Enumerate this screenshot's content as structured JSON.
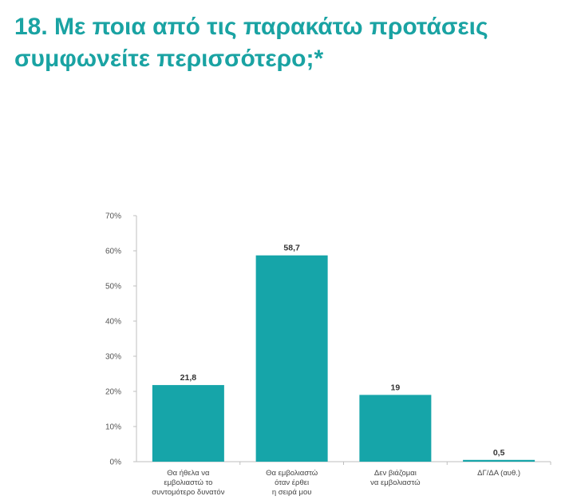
{
  "title": {
    "line1": "18. Με ποια από τις παρακάτω προτάσεις",
    "line2": "συμφωνείτε περισσότερο;*"
  },
  "colors": {
    "title": "#1aa3a3",
    "bar": "#16a5a9",
    "axis": "#bfbfbf"
  },
  "chart_data": {
    "type": "bar",
    "title": "",
    "xlabel": "",
    "ylabel": "",
    "ylim": [
      0,
      70
    ],
    "yticks": [
      "0%",
      "10%",
      "20%",
      "30%",
      "40%",
      "50%",
      "60%",
      "70%"
    ],
    "grid": false,
    "categories": [
      [
        "Θα ήθελα να",
        "εμβολιαστώ το",
        "συντομότερο δυνατόν"
      ],
      [
        "Θα εμβολιαστώ",
        "όταν έρθει",
        "η σειρά μου"
      ],
      [
        "Δεν βιάζομαι",
        "να εμβολιαστώ"
      ],
      [
        "ΔΓ/ΔΑ (αυθ.)"
      ]
    ],
    "values": [
      21.8,
      58.7,
      19,
      0.5
    ],
    "data_labels": [
      "21,8",
      "58,7",
      "19",
      "0,5"
    ]
  }
}
